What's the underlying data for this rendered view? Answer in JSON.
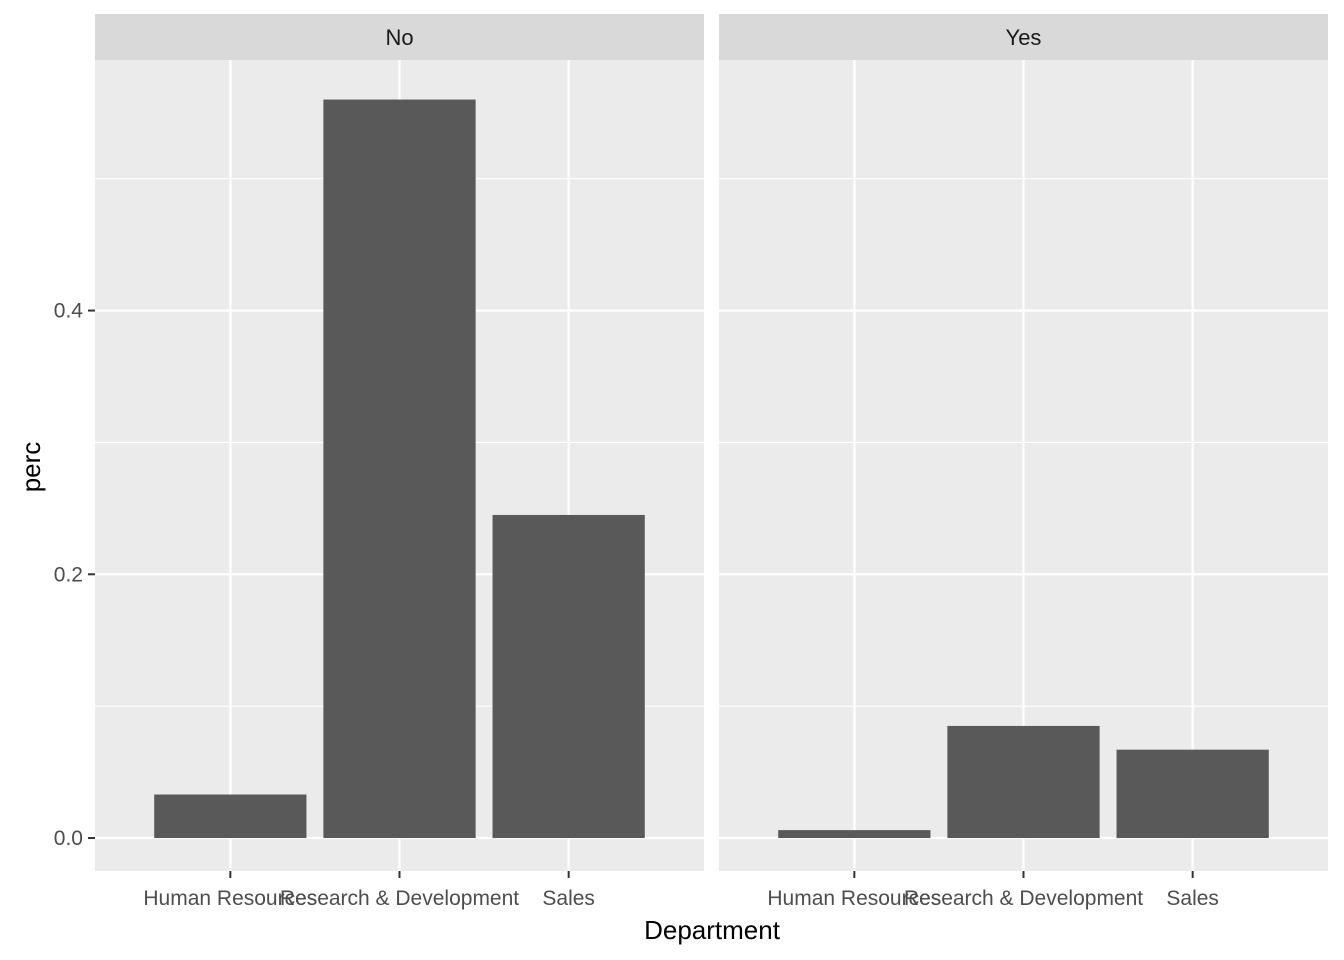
{
  "chart_data": {
    "type": "bar",
    "xlabel": "Department",
    "ylabel": "perc",
    "ylim": [
      -0.025,
      0.59
    ],
    "yticks": [
      0.0,
      0.2,
      0.4
    ],
    "ytick_labels": [
      "0.0",
      "0.2",
      "0.4"
    ],
    "categories": [
      "Human Resources",
      "Research & Development",
      "Sales"
    ],
    "grid": true,
    "bar_color": "#595959",
    "panel_background": "#ebebeb",
    "strip_background": "#d9d9d9",
    "grid_color": "#ffffff",
    "facets": [
      {
        "label": "No",
        "values": [
          0.033,
          0.56,
          0.245
        ]
      },
      {
        "label": "Yes",
        "values": [
          0.006,
          0.085,
          0.067
        ]
      }
    ]
  }
}
